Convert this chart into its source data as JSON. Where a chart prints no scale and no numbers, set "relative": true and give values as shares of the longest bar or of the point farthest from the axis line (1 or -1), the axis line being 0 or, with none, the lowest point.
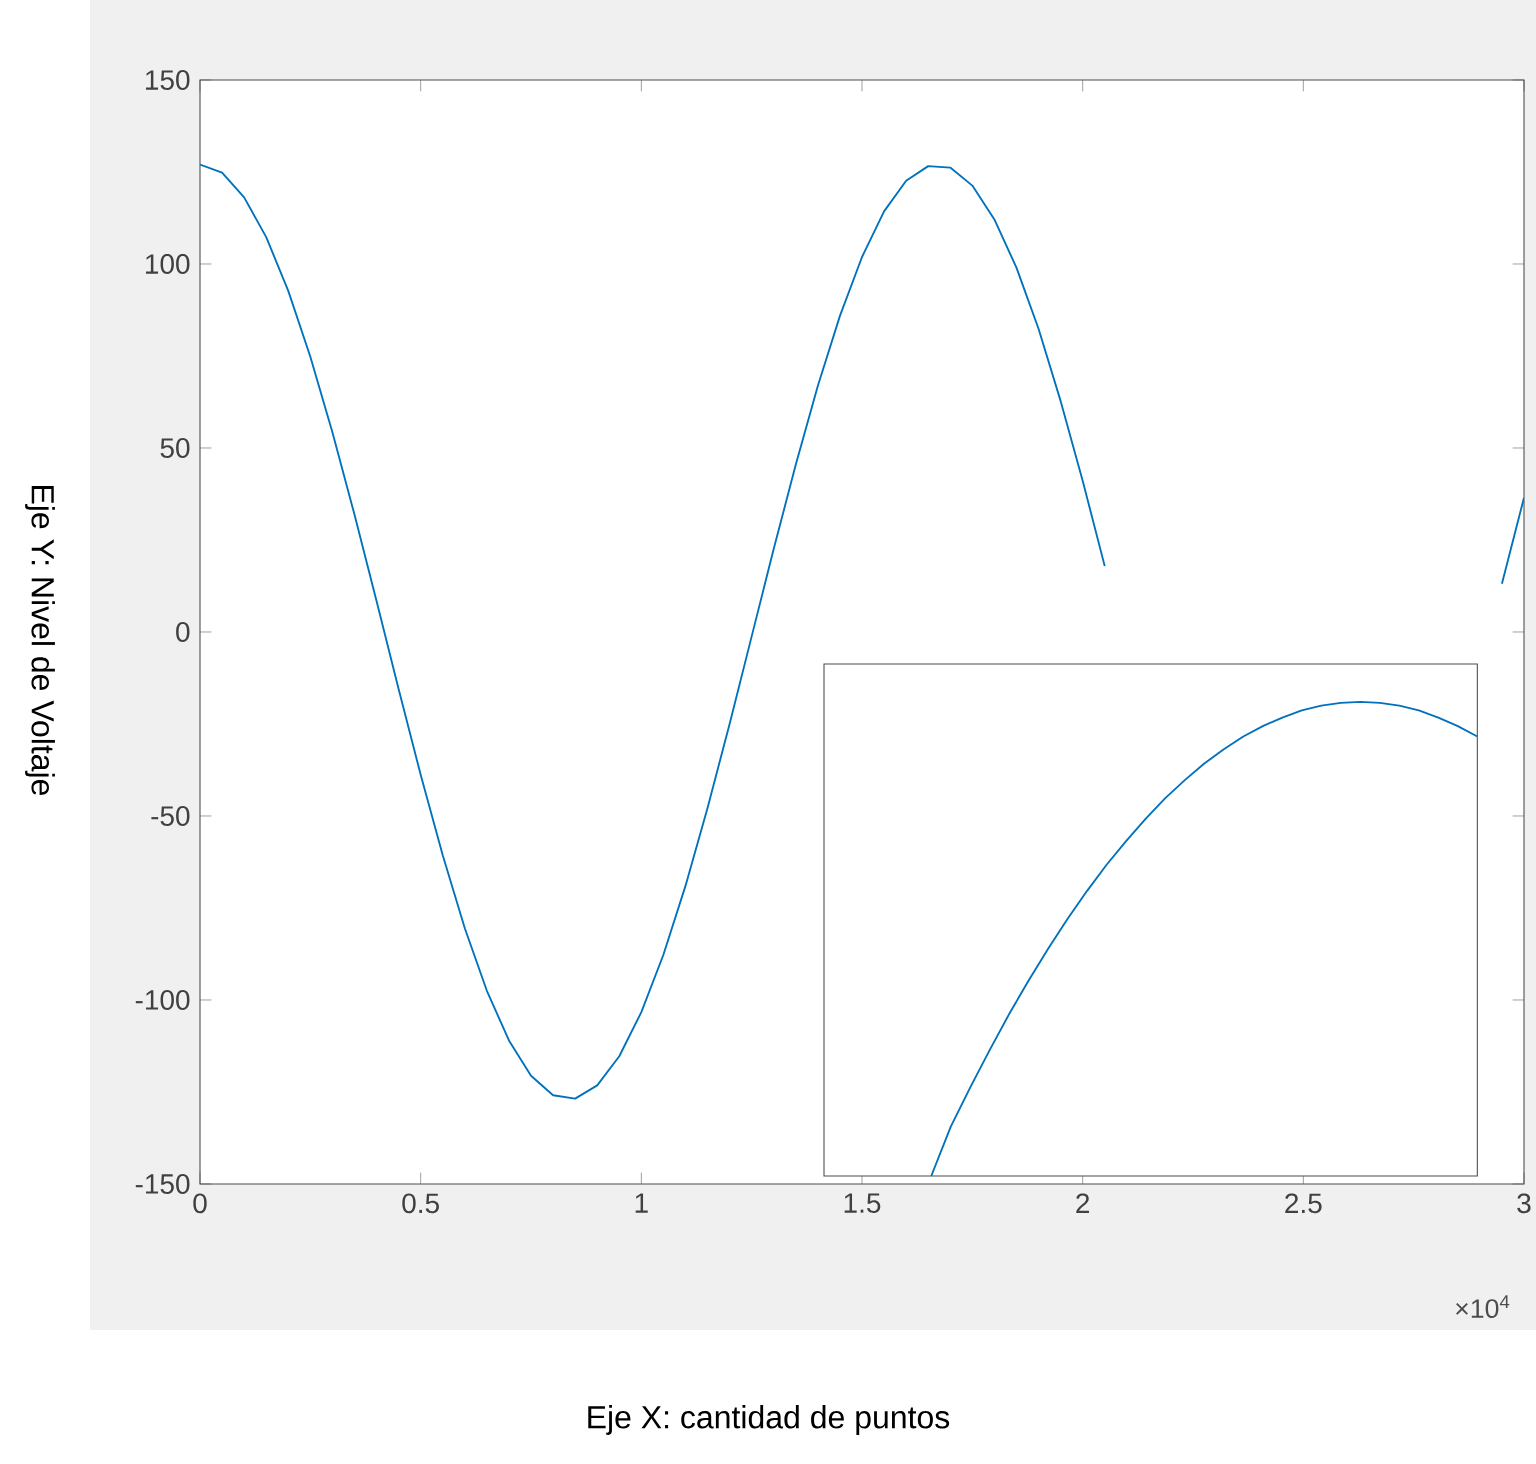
{
  "chart_data": [
    {
      "type": "line",
      "xlabel": "Eje X: cantidad de puntos",
      "ylabel": "Eje Y: Nivel de Voltaje",
      "x": [
        0,
        0.05,
        0.1,
        0.15,
        0.2,
        0.25,
        0.3,
        0.35,
        0.4,
        0.45,
        0.5,
        0.55,
        0.6,
        0.65,
        0.7,
        0.75,
        0.8,
        0.85,
        0.9,
        0.95,
        1,
        1.05,
        1.1,
        1.15,
        1.2,
        1.25,
        1.3,
        1.35,
        1.4,
        1.45,
        1.5,
        1.55,
        1.6,
        1.65,
        1.7,
        1.75,
        1.8,
        1.85,
        1.9,
        1.95,
        2,
        2.05,
        2.1,
        2.15,
        2.2,
        2.25,
        2.3,
        2.35,
        2.4,
        2.45,
        2.5,
        2.55,
        2.6,
        2.65,
        2.7,
        2.75,
        2.8,
        2.85,
        2.9,
        2.95,
        3
      ],
      "series": [
        {
          "color": "#0072bd",
          "values": [
            127,
            124.8,
            118.1,
            107.3,
            92.7,
            74.8,
            54.3,
            31.9,
            8.4,
            -15.5,
            -38.8,
            -60.7,
            -80.5,
            -97.5,
            -111.0,
            -120.6,
            -125.9,
            -126.8,
            -123.2,
            -115.3,
            -103.3,
            -87.7,
            -69.0,
            -47.8,
            -25.0,
            -1.2,
            22.6,
            45.5,
            66.9,
            85.9,
            101.9,
            114.3,
            122.6,
            126.6,
            126.2,
            121.3,
            112.1,
            99.0,
            82.4,
            62.8,
            41.1,
            17.9,
            null,
            null,
            null,
            null,
            null,
            null,
            null,
            null,
            null,
            null,
            null,
            null,
            null,
            null,
            null,
            null,
            null,
            13.1,
            36.5
          ]
        }
      ],
      "xlim": [
        0,
        3
      ],
      "ylim": [
        -150,
        150
      ],
      "xticks": [
        0,
        0.5,
        1,
        1.5,
        2,
        2.5,
        3
      ],
      "yticks": [
        -150,
        -100,
        -50,
        0,
        50,
        100,
        150
      ],
      "annotations": [
        "×10$^{4}$"
      ]
    },
    {
      "type": "line",
      "relative": true,
      "categories": [
        null,
        null,
        null,
        null,
        null,
        null,
        null,
        null,
        null,
        null,
        null,
        null,
        null,
        null,
        null,
        null,
        null,
        null,
        null,
        null,
        null,
        null,
        null,
        null,
        null,
        null,
        null,
        null,
        null,
        null,
        null,
        null,
        null,
        null
      ],
      "series": [
        {
          "color": "#0072bd",
          "values": [
            null,
            null,
            null,
            null,
            null,
            0,
            0.104,
            0.187,
            0.266,
            0.342,
            0.413,
            0.48,
            0.543,
            0.602,
            0.657,
            0.707,
            0.754,
            0.797,
            0.835,
            0.87,
            0.9,
            0.927,
            0.949,
            0.967,
            0.982,
            0.992,
            0.998,
            1,
            0.998,
            0.992,
            0.982,
            0.967,
            0.949,
            0.927
          ]
        }
      ]
    }
  ]
}
